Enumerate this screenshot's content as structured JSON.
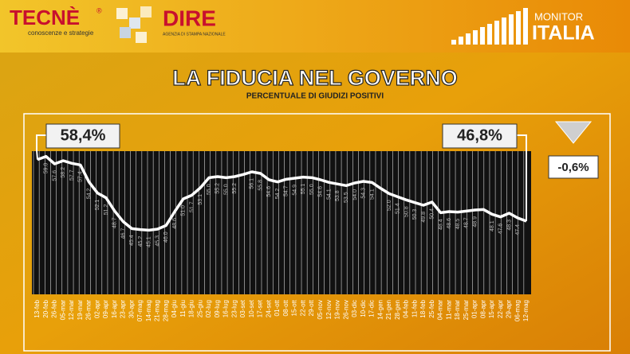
{
  "header": {
    "brand_left": "TECNÈ",
    "brand_left_mark": "®",
    "brand_left_tagline": "conoscenze e strategie",
    "brand_mid": "DIRE",
    "brand_mid_tagline": "AGENZIA DI STAMPA NAZIONALE",
    "brand_right_top": "MONITOR",
    "brand_right_bottom": "ITALIA"
  },
  "chart_data": {
    "type": "line",
    "title": "LA FIDUCIA NEL GOVERNO",
    "subtitle": "PERCENTUALE DI GIUDIZI POSITIVI",
    "color": "#ffffff",
    "change_label": "-0,6%",
    "categories": [
      "13-feb",
      "20-feb",
      "26-feb",
      "05-mar",
      "12-mar",
      "19-mar",
      "26-mar",
      "02-apr",
      "09-apr",
      "16-apr",
      "23-apr",
      "30-apr",
      "07-mag",
      "14-mag",
      "21-mag",
      "28-mag",
      "04-giu",
      "11-giu",
      "18-giu",
      "25-giu",
      "02-lug",
      "09-lug",
      "16-lug",
      "23-lug",
      "03-set",
      "10-set",
      "17-set",
      "24-set",
      "01-ott",
      "08-ott",
      "15-ott",
      "22-ott",
      "29-ott",
      "05-nov",
      "12-nov",
      "19-nov",
      "26-nov",
      "03-dic",
      "10-dic",
      "17-dic",
      "14-gen",
      "21-gen",
      "28-gen",
      "04-feb",
      "11-feb",
      "18-feb",
      "25-feb",
      "04-mar",
      "11-mar",
      "18-mar",
      "25-mar",
      "01-apr",
      "08-apr",
      "15-apr",
      "22-apr",
      "29-apr",
      "06-mag",
      "12-mag"
    ],
    "values": [
      58.4,
      59.0,
      57.6,
      58.2,
      57.7,
      57.4,
      54.2,
      52.1,
      51.2,
      48.7,
      46.7,
      45.4,
      45.2,
      45.1,
      45.3,
      46.0,
      48.6,
      51.0,
      51.7,
      53.1,
      55.0,
      55.2,
      55.0,
      55.2,
      55.6,
      56.1,
      55.8,
      54.6,
      54.2,
      54.7,
      54.9,
      55.1,
      55.0,
      54.6,
      54.1,
      53.8,
      53.5,
      54.0,
      54.3,
      54.1,
      53.0,
      52.0,
      51.4,
      50.8,
      50.3,
      49.8,
      50.4,
      48.4,
      48.6,
      48.5,
      48.7,
      48.9,
      49.0,
      48.1,
      47.6,
      48.3,
      47.4,
      46.8
    ],
    "value_labels": [
      "58,4%",
      "59.0",
      "57.6",
      "58.2",
      "57.7",
      "57.4",
      "54.2",
      "52.1",
      "51.2",
      "48.7",
      "46.7",
      "45.4",
      "45.2",
      "45.1",
      "45.3",
      "46.0",
      "48.6",
      "51.0",
      "51.7",
      "53.1",
      "55.0",
      "55.2",
      "55.0",
      "55.2",
      null,
      "56.1",
      "55.8",
      "54.6",
      "54.2",
      "54.7",
      "54.9",
      "55.1",
      "55.0",
      "54.6",
      "54.1",
      "53.8",
      "53.5",
      "54.0",
      "54.3",
      "54.1",
      null,
      "52.0",
      "51.4",
      "50.8",
      "50.3",
      "49.8",
      "50.4",
      "48.4",
      "48.6",
      "48.5",
      "48.7",
      "48.9",
      null,
      "48.1",
      "47.6",
      "48.3",
      "47.4",
      "46,8%"
    ],
    "ylim": [
      33,
      60
    ]
  }
}
